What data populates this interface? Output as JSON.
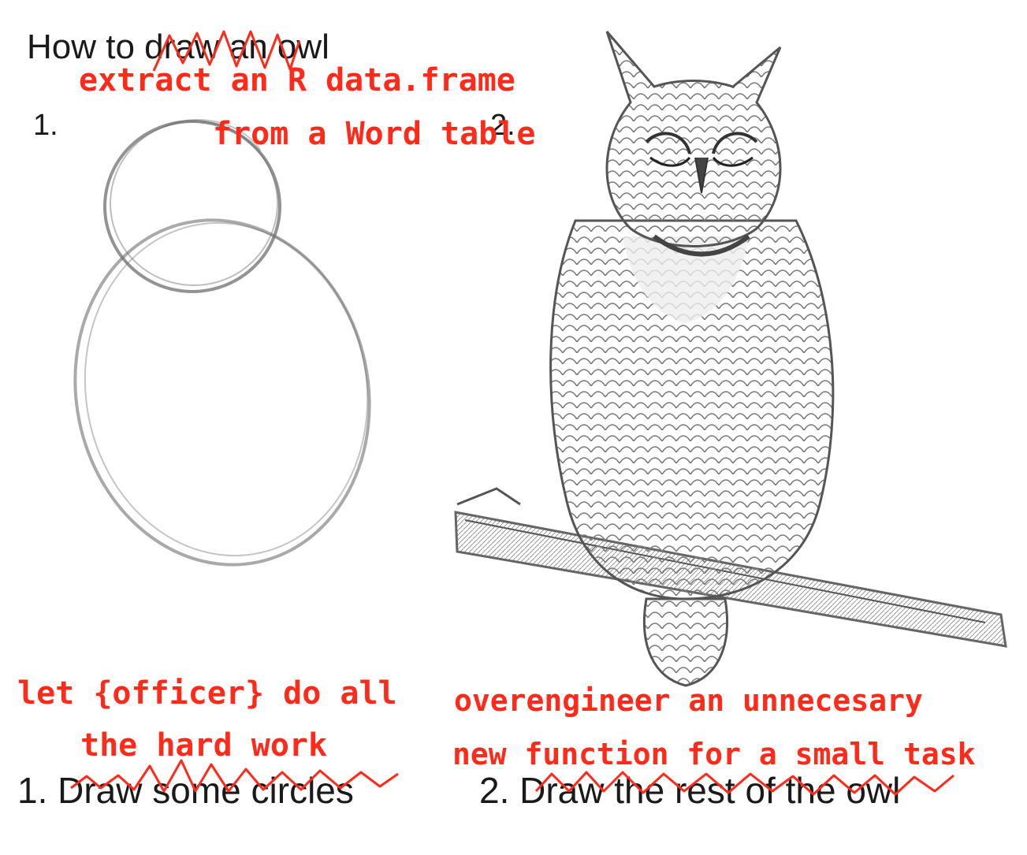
{
  "meme": {
    "title": "How to draw an owl",
    "step1_number": "1.",
    "step2_number": "2.",
    "caption1": "1. Draw some circles",
    "caption2": "2. Draw the rest of the owl"
  },
  "annotations": {
    "title_replacement_line1": "extract an R data.frame",
    "title_replacement_line2": "from a Word table",
    "caption1_replacement_line1": "let {officer} do all",
    "caption1_replacement_line2": "the hard work",
    "caption2_replacement_line1": "overengineer an unnecesary",
    "caption2_replacement_line2": "new function for a small task"
  },
  "colors": {
    "annotation": "#ff2a1a",
    "text": "#1a1a1a",
    "sketch": "#6f6f6f"
  },
  "images": {
    "left": "sketched-circles-owl",
    "right": "detailed-owl-drawing-on-branch"
  }
}
